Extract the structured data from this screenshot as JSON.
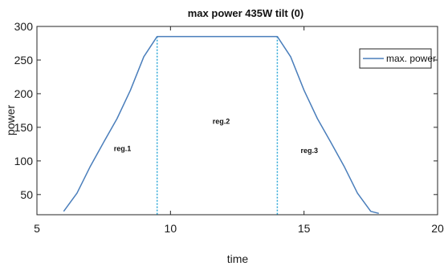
{
  "chart_data": {
    "type": "line",
    "title": "max power 435W tilt (0)",
    "xlabel": "time",
    "ylabel": "power",
    "xlim": [
      5,
      20
    ],
    "ylim": [
      20,
      300
    ],
    "xticks": [
      5,
      10,
      15,
      20
    ],
    "yticks": [
      50,
      100,
      150,
      200,
      250,
      300
    ],
    "grid": false,
    "legend": "top-right",
    "series": [
      {
        "name": "max. power",
        "color": "#4a7ebb",
        "x": [
          6.0,
          6.5,
          7.0,
          7.5,
          8.0,
          8.5,
          9.0,
          9.5,
          10.0,
          10.5,
          11.0,
          11.5,
          12.0,
          12.5,
          13.0,
          13.5,
          14.0,
          14.5,
          15.0,
          15.5,
          16.0,
          16.5,
          17.0,
          17.5,
          17.8
        ],
        "y": [
          25,
          52,
          92,
          128,
          163,
          205,
          255,
          285,
          285,
          285,
          285,
          285,
          285,
          285,
          285,
          285,
          285,
          255,
          205,
          163,
          128,
          92,
          52,
          25,
          22
        ]
      }
    ],
    "vlines": [
      {
        "x": 9.5,
        "style": "dotted",
        "color": "#2aa6d6"
      },
      {
        "x": 14.0,
        "style": "dotted",
        "color": "#2aa6d6"
      }
    ],
    "annotations": [
      {
        "text": "reg.1",
        "x": 8.2,
        "y": 115
      },
      {
        "text": "reg.2",
        "x": 11.9,
        "y": 155
      },
      {
        "text": "reg.3",
        "x": 15.2,
        "y": 112
      }
    ]
  }
}
